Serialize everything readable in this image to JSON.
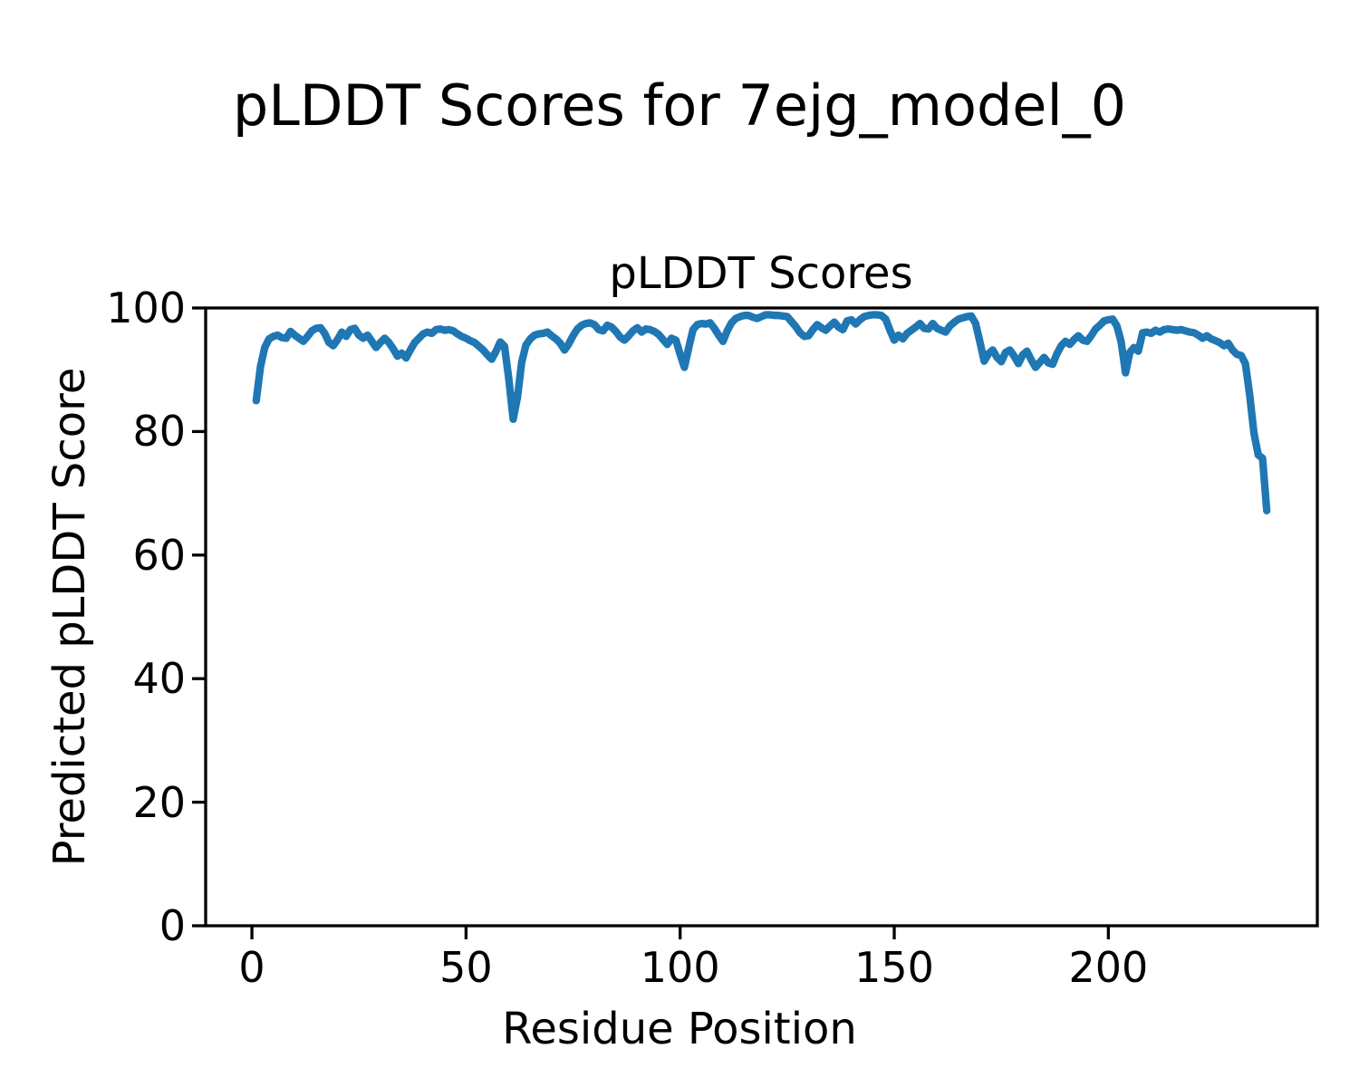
{
  "figure": {
    "suptitle": "pLDDT Scores for 7ejg_model_0",
    "background_color": "#ffffff",
    "text_color": "#000000"
  },
  "chart": {
    "title": "pLDDT Scores",
    "xlabel": "Residue Position",
    "ylabel": "Predicted pLDDT Score",
    "line_color": "#1f77b4",
    "frame_color": "#000000",
    "xtick_labels": [
      "0",
      "50",
      "100",
      "150",
      "200"
    ],
    "xtick_values": [
      0,
      50,
      100,
      150,
      200
    ],
    "ytick_labels": [
      "0",
      "20",
      "40",
      "60",
      "80",
      "100"
    ],
    "ytick_values": [
      0,
      20,
      40,
      60,
      80,
      100
    ]
  },
  "chart_data": {
    "type": "line",
    "title": "pLDDT Scores",
    "xlabel": "Residue Position",
    "ylabel": "Predicted pLDDT Score",
    "series_name": "pLDDT score per residue",
    "grid": false,
    "legend_position": "none",
    "xlim": [
      -10.8,
      248.8
    ],
    "ylim": [
      0,
      100
    ],
    "x_start": 1,
    "x_step": 1,
    "x_end": 237,
    "y": [
      85.0,
      90.5,
      93.6,
      95.0,
      95.4,
      95.6,
      95.2,
      95.1,
      96.2,
      95.6,
      95.1,
      94.6,
      95.4,
      96.3,
      96.7,
      96.8,
      95.9,
      94.4,
      93.9,
      94.9,
      96.1,
      95.4,
      96.5,
      96.7,
      95.6,
      95.1,
      95.6,
      94.6,
      93.6,
      94.4,
      95.1,
      94.4,
      93.4,
      92.2,
      92.7,
      91.9,
      93.2,
      94.4,
      95.1,
      95.8,
      96.1,
      95.9,
      96.5,
      96.6,
      96.4,
      96.5,
      96.3,
      95.8,
      95.4,
      95.1,
      94.7,
      94.4,
      93.8,
      93.2,
      92.4,
      91.7,
      93.0,
      94.5,
      93.8,
      88.5,
      82.0,
      85.5,
      91.2,
      94.0,
      95.0,
      95.6,
      95.8,
      95.9,
      96.1,
      95.5,
      95.0,
      94.3,
      93.2,
      94.2,
      95.5,
      96.6,
      97.2,
      97.5,
      97.6,
      97.3,
      96.5,
      96.3,
      97.2,
      96.9,
      96.2,
      95.3,
      94.8,
      95.5,
      96.3,
      96.8,
      96.1,
      96.6,
      96.5,
      96.2,
      95.7,
      94.9,
      94.1,
      95.1,
      94.8,
      92.5,
      90.4,
      93.5,
      96.5,
      97.3,
      97.5,
      97.4,
      97.6,
      96.7,
      95.6,
      94.6,
      96.3,
      97.6,
      98.3,
      98.6,
      98.8,
      98.8,
      98.5,
      98.3,
      98.6,
      98.9,
      98.9,
      98.8,
      98.8,
      98.7,
      98.6,
      97.8,
      97.0,
      96.0,
      95.4,
      95.5,
      96.5,
      97.3,
      96.8,
      96.4,
      97.1,
      97.7,
      96.9,
      96.5,
      97.9,
      98.1,
      97.4,
      98.1,
      98.6,
      98.8,
      98.9,
      98.9,
      98.8,
      98.2,
      96.4,
      94.8,
      95.6,
      95.0,
      95.9,
      96.4,
      96.9,
      97.5,
      96.7,
      96.6,
      97.5,
      96.7,
      96.4,
      96.1,
      97.1,
      97.7,
      98.2,
      98.4,
      98.6,
      98.7,
      97.5,
      94.5,
      91.4,
      92.6,
      93.2,
      92.0,
      91.3,
      92.8,
      93.2,
      92.2,
      91.0,
      92.4,
      93.0,
      91.6,
      90.4,
      91.2,
      92.0,
      91.1,
      90.9,
      92.6,
      93.9,
      94.6,
      94.1,
      94.9,
      95.5,
      94.8,
      94.6,
      95.5,
      96.6,
      97.2,
      97.9,
      98.1,
      98.2,
      97.1,
      94.5,
      89.5,
      92.8,
      93.6,
      93.0,
      96.0,
      96.1,
      95.9,
      96.4,
      96.1,
      96.5,
      96.6,
      96.5,
      96.4,
      96.5,
      96.3,
      96.1,
      96.0,
      95.6,
      95.1,
      95.5,
      95.0,
      94.7,
      94.4,
      93.9,
      94.3,
      93.2,
      92.5,
      92.3,
      91.0,
      86.0,
      79.8,
      76.2,
      75.7,
      67.2
    ]
  }
}
